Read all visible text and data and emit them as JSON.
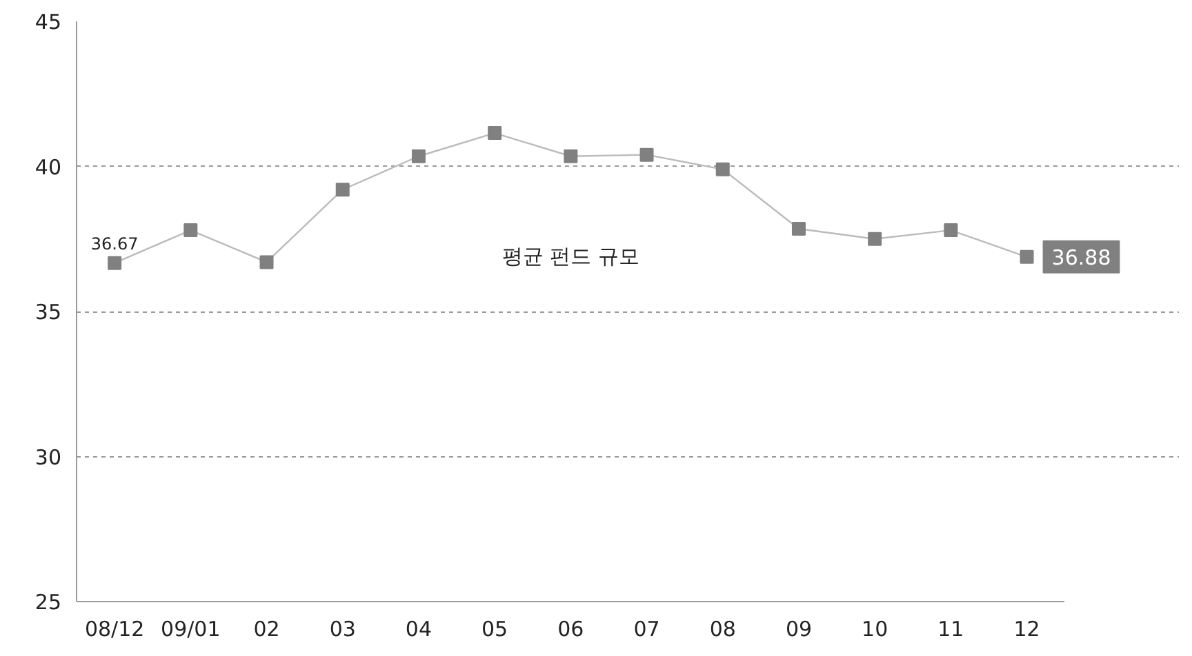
{
  "chart_data": {
    "type": "line",
    "categories": [
      "08/12",
      "09/01",
      "02",
      "03",
      "04",
      "05",
      "06",
      "07",
      "08",
      "09",
      "10",
      "11",
      "12"
    ],
    "series": [
      {
        "name": "평균 펀드 규모",
        "color": "#808080",
        "values": [
          36.67,
          37.8,
          36.7,
          39.2,
          40.35,
          41.15,
          40.35,
          40.4,
          39.9,
          37.85,
          37.5,
          37.8,
          36.88
        ],
        "value_labels": [
          "36.67",
          null,
          null,
          null,
          null,
          null,
          null,
          null,
          null,
          null,
          null,
          null,
          "36.88"
        ]
      }
    ],
    "ylim": [
      25,
      45
    ],
    "yticks": [
      25,
      30,
      35,
      40,
      45
    ],
    "grid": "y",
    "marker": "square",
    "line_style": "solid",
    "legend": false
  }
}
